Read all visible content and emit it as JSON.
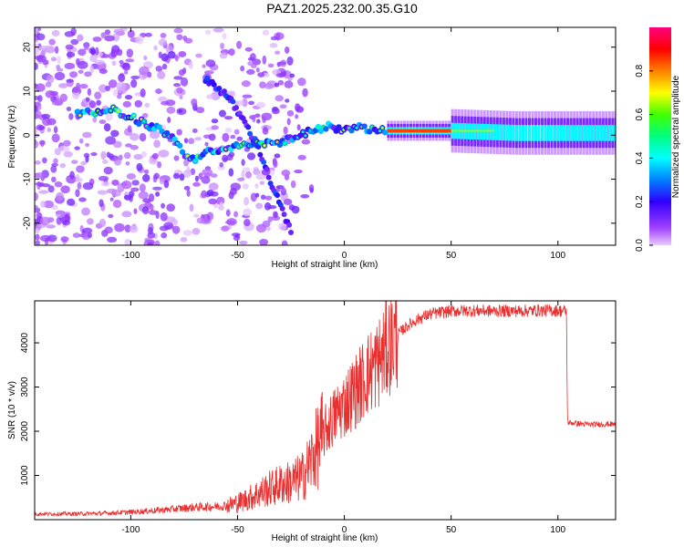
{
  "title": "PAZ1.2025.232.00.35.G10",
  "chart_data": [
    {
      "type": "heatmap",
      "xlabel": "Height of straight line (km)",
      "ylabel": "Frequency (Hz)",
      "xlim": [
        -145,
        127
      ],
      "ylim": [
        -25,
        24.5
      ],
      "xticks": [
        -100,
        -50,
        0,
        50,
        100
      ],
      "yticks": [
        -20,
        -10,
        0,
        10,
        20
      ],
      "colorbar": {
        "label": "Normalized spectral amplitude",
        "range": [
          0,
          1
        ],
        "ticks": [
          "0.0",
          "0.2",
          "0.4",
          "0.6",
          "0.8"
        ],
        "colormap": "rainbow (violet → blue → cyan → green → yellow → red → magenta)"
      },
      "ridge": {
        "description": "main frequency ridge",
        "points": [
          {
            "x": -120,
            "y": 5
          },
          {
            "x": -110,
            "y": 6
          },
          {
            "x": -100,
            "y": 4
          },
          {
            "x": -90,
            "y": 2
          },
          {
            "x": -82,
            "y": 0
          },
          {
            "x": -75,
            "y": -4
          },
          {
            "x": -70,
            "y": -6
          },
          {
            "x": -65,
            "y": -4
          },
          {
            "x": -55,
            "y": -3
          },
          {
            "x": -45,
            "y": -2
          },
          {
            "x": -35,
            "y": -2
          },
          {
            "x": -25,
            "y": -1
          },
          {
            "x": -15,
            "y": 1
          },
          {
            "x": -8,
            "y": 2
          },
          {
            "x": 0,
            "y": 1
          },
          {
            "x": 5,
            "y": 2
          },
          {
            "x": 10,
            "y": 1.5
          },
          {
            "x": 20,
            "y": 1
          },
          {
            "x": 50,
            "y": 1
          },
          {
            "x": 80,
            "y": 0.5
          },
          {
            "x": 127,
            "y": 0.5
          }
        ]
      },
      "secondary_ridge": {
        "points": [
          {
            "x": -65,
            "y": 13
          },
          {
            "x": -55,
            "y": 9
          },
          {
            "x": -48,
            "y": 4
          },
          {
            "x": -40,
            "y": -3
          },
          {
            "x": -35,
            "y": -10
          },
          {
            "x": -30,
            "y": -16
          },
          {
            "x": -25,
            "y": -22
          }
        ]
      }
    },
    {
      "type": "line",
      "xlabel": "Height of straight line (km)",
      "ylabel": "SNR (10 * v/v)",
      "xlim": [
        -145,
        127
      ],
      "ylim": [
        0,
        4950
      ],
      "xticks": [
        -100,
        -50,
        0,
        50,
        100
      ],
      "yticks": [
        1000,
        2000,
        3000,
        4000
      ],
      "color": "#e83030",
      "series": [
        {
          "x": [
            -145,
            -130,
            -115,
            -100,
            -90,
            -80,
            -70,
            -60,
            -55,
            -50,
            -45,
            -40,
            -35,
            -30,
            -25,
            -20,
            -17,
            -15,
            -12,
            -10,
            -8,
            -5,
            -2,
            0,
            3,
            5,
            8,
            10,
            13,
            15,
            18,
            20,
            25,
            30,
            35,
            40,
            50,
            60,
            70,
            80,
            90,
            100,
            104,
            104.5,
            110,
            115,
            120,
            127
          ],
          "y": [
            130,
            130,
            140,
            170,
            200,
            240,
            280,
            300,
            320,
            380,
            480,
            600,
            700,
            800,
            850,
            950,
            1200,
            1400,
            1700,
            1900,
            2100,
            2300,
            2500,
            2600,
            2800,
            2900,
            3100,
            3250,
            3400,
            3500,
            3700,
            3900,
            4200,
            4400,
            4550,
            4650,
            4720,
            4730,
            4720,
            4720,
            4730,
            4730,
            4720,
            2200,
            2170,
            2150,
            2160,
            2160
          ]
        }
      ]
    }
  ]
}
